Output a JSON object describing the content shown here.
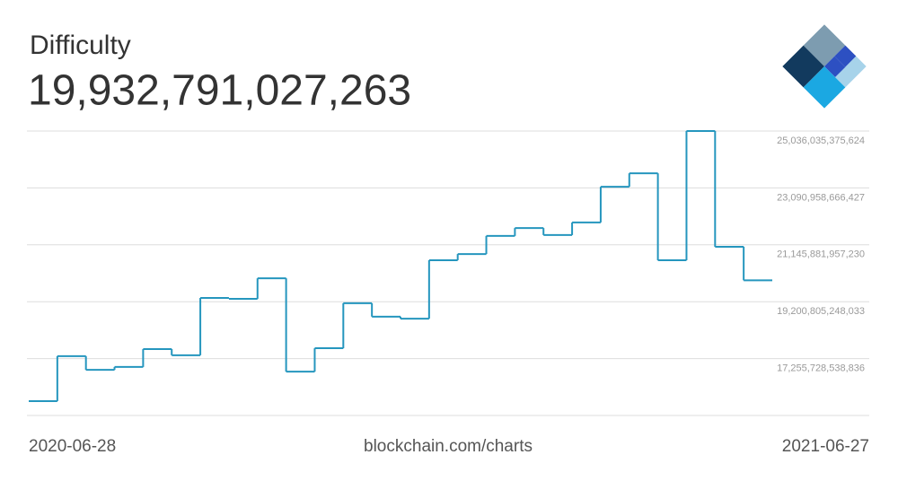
{
  "chart_data": {
    "type": "step",
    "title": "Difficulty",
    "subtitle": "19,932,791,027,263",
    "x_start": "2020-06-28",
    "x_end": "2021-06-27",
    "source": "blockchain.com/charts",
    "color": "#2596be",
    "values": [
      15800000000000,
      17340000000000,
      16870000000000,
      16970000000000,
      17580000000000,
      17370000000000,
      19330000000000,
      19300000000000,
      20000000000000,
      16810000000000,
      17610000000000,
      19150000000000,
      18690000000000,
      18620000000000,
      20620000000000,
      20830000000000,
      21450000000000,
      21720000000000,
      21480000000000,
      21910000000000,
      23130000000000,
      23590000000000,
      20620000000000,
      25036035375624,
      21080000000000,
      19932791027263
    ],
    "ylim": [
      15310651829639,
      25036035375624
    ],
    "yticks": [
      {
        "value": 25036035375624,
        "label": "25,036,035,375,624"
      },
      {
        "value": 23090958666427,
        "label": "23,090,958,666,427"
      },
      {
        "value": 21145881957230,
        "label": "21,145,881,957,230"
      },
      {
        "value": 19200805248033,
        "label": "19,200,805,248,033"
      },
      {
        "value": 17255728538836,
        "label": "17,255,728,538,836"
      }
    ],
    "grid": true
  }
}
